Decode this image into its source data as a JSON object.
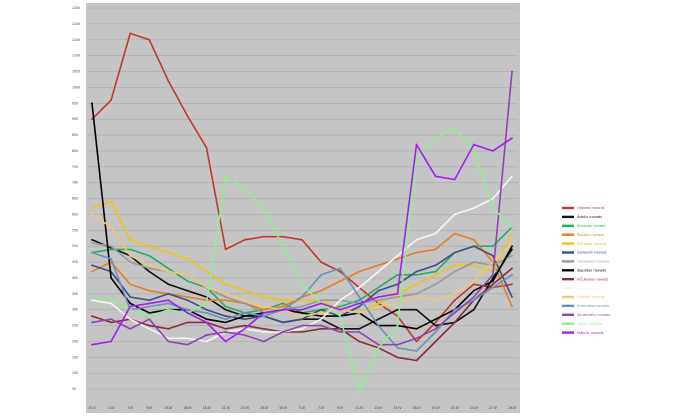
{
  "chart_data": {
    "type": "line",
    "title": "",
    "xlabel": "",
    "ylabel": "",
    "grid": true,
    "background": "#c5c5c5",
    "legend_position": "right",
    "ylim": [
      0,
      1250
    ],
    "y_ticks": [
      "50",
      "100",
      "150",
      "200",
      "250",
      "300",
      "350",
      "400",
      "450",
      "500",
      "550",
      "600",
      "650",
      "700",
      "750",
      "800",
      "850",
      "900",
      "950",
      "1000",
      "1050",
      "1100",
      "1150",
      "1200",
      "1250"
    ],
    "categories": [
      "20.II",
      "2.III",
      "7.III",
      "9.III",
      "13.III",
      "16.III",
      "18.III",
      "21.III",
      "23.III",
      "26.III",
      "30.III",
      "5.IV",
      "7.IV",
      "9.IV",
      "11.IV",
      "13.IV",
      "15.IV",
      "18.IV",
      "20.IV",
      "22.IV",
      "24.IV",
      "27.IV",
      "29.IV"
    ],
    "series": [
      {
        "name": "Olaines novads",
        "color": "#c0392b",
        "values": [
          900,
          960,
          1170,
          1150,
          1020,
          910,
          810,
          490,
          520,
          530,
          530,
          520,
          450,
          420,
          370,
          320,
          280,
          200,
          260,
          330,
          380,
          370,
          380
        ]
      },
      {
        "name": "Ādažu novads",
        "color": "#111111",
        "values": [
          520,
          495,
          470,
          420,
          380,
          360,
          340,
          300,
          280,
          280,
          260,
          270,
          270,
          240,
          240,
          270,
          300,
          300,
          250,
          260,
          300,
          400,
          490
        ]
      },
      {
        "name": "Ķekavas novads",
        "color": "#27ae60",
        "values": [
          480,
          490,
          490,
          470,
          430,
          390,
          370,
          310,
          290,
          300,
          320,
          290,
          300,
          310,
          330,
          370,
          410,
          410,
          420,
          480,
          500,
          500,
          560
        ]
      },
      {
        "name": "Ropažu novads",
        "color": "#e67e22",
        "values": [
          420,
          450,
          380,
          360,
          350,
          340,
          330,
          330,
          320,
          300,
          310,
          340,
          360,
          390,
          420,
          440,
          460,
          480,
          490,
          540,
          520,
          450,
          310
        ]
      },
      {
        "name": "Mārupes novads",
        "color": "#f1c40f",
        "values": [
          620,
          640,
          520,
          500,
          480,
          460,
          420,
          380,
          360,
          340,
          330,
          330,
          330,
          300,
          290,
          320,
          350,
          380,
          410,
          440,
          440,
          420,
          540
        ]
      },
      {
        "name": "Salaspils novads",
        "color": "#3b4f8a",
        "values": [
          440,
          420,
          340,
          330,
          350,
          330,
          300,
          280,
          270,
          280,
          260,
          270,
          300,
          280,
          310,
          360,
          380,
          420,
          440,
          480,
          500,
          470,
          340
        ]
      },
      {
        "name": "Garkalnes novads",
        "color": "#999999",
        "values": [
          510,
          500,
          450,
          430,
          420,
          410,
          370,
          340,
          320,
          290,
          300,
          310,
          330,
          330,
          320,
          330,
          340,
          350,
          380,
          420,
          450,
          440,
          470
        ]
      },
      {
        "name": "Siguldas novads",
        "color": "#000000",
        "values": [
          950,
          400,
          320,
          290,
          300,
          300,
          270,
          260,
          280,
          290,
          300,
          290,
          280,
          280,
          290,
          250,
          250,
          240,
          270,
          300,
          360,
          390,
          500
        ]
      },
      {
        "name": "Inčukalna novads",
        "color": "#8e2a3c",
        "values": [
          280,
          260,
          270,
          250,
          240,
          260,
          260,
          240,
          250,
          240,
          230,
          230,
          240,
          240,
          200,
          180,
          150,
          140,
          200,
          260,
          330,
          380,
          430
        ]
      },
      {
        "name": "Carnikavas novads",
        "color": "#f5f5f5",
        "values": [
          330,
          320,
          270,
          240,
          210,
          210,
          200,
          230,
          240,
          230,
          230,
          240,
          270,
          330,
          370,
          420,
          470,
          520,
          540,
          600,
          620,
          650,
          720
        ]
      },
      {
        "name": "Babītes novads",
        "color": "#f2c86e",
        "values": [
          600,
          560,
          470,
          440,
          420,
          410,
          370,
          350,
          330,
          310,
          300,
          280,
          290,
          300,
          290,
          310,
          320,
          340,
          330,
          350,
          390,
          450,
          510
        ]
      },
      {
        "name": "Krimuldas novads",
        "color": "#6f8fb5",
        "values": [
          480,
          460,
          300,
          310,
          320,
          300,
          290,
          270,
          290,
          280,
          300,
          340,
          410,
          430,
          340,
          250,
          180,
          170,
          230,
          300,
          330,
          370,
          410
        ]
      },
      {
        "name": "Saulkrastu novads",
        "color": "#8e44ad",
        "values": [
          260,
          270,
          240,
          270,
          200,
          190,
          220,
          230,
          220,
          200,
          230,
          250,
          250,
          230,
          230,
          190,
          190,
          210,
          240,
          290,
          340,
          410,
          1050
        ]
      },
      {
        "name": "Ogres novads",
        "color": "#90ee90",
        "values": [
          340,
          330,
          300,
          280,
          300,
          290,
          320,
          720,
          680,
          620,
          500,
          380,
          320,
          280,
          40,
          180,
          250,
          780,
          840,
          870,
          800,
          620,
          560
        ]
      },
      {
        "name": "Mālpils novads",
        "color": "#a020f0",
        "values": [
          190,
          200,
          310,
          320,
          330,
          290,
          260,
          200,
          240,
          290,
          300,
          300,
          320,
          300,
          320,
          340,
          350,
          820,
          720,
          710,
          820,
          800,
          840
        ]
      }
    ]
  }
}
